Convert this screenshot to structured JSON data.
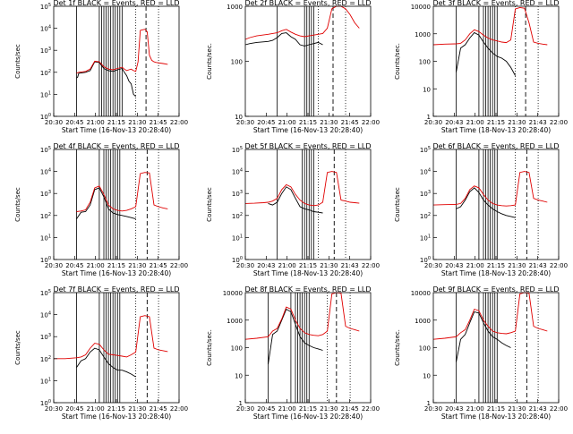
{
  "figure": {
    "x_tick_labels_a": [
      "20:30",
      "20:45",
      "21:00",
      "21:15",
      "21:30",
      "21:45",
      "22:00"
    ],
    "x_tick_labels_b": [
      "20:30",
      "20:43",
      "21:00",
      "21:15",
      "21:30",
      "21:43",
      "22:00"
    ],
    "xlabel_a": "Start Time (16-Nov-13 20:28:40)",
    "xlabel_b": "Start Time (18-Nov-13 20:28:40)",
    "ylabel": "Counts/sec",
    "ylabel_alt": "Counts/sec."
  },
  "chart_data": [
    {
      "type": "line",
      "panel": "det-1f",
      "title": "Det 1f  BLACK = Events, RED = LLD",
      "xlabel_key": "a",
      "ylabel_key": "a",
      "xticks": "a",
      "yscale": "log",
      "ytick_style": "exp",
      "ylim": [
        1,
        100000
      ],
      "x_minutes": [
        0,
        60
      ],
      "series": [
        {
          "name": "BLACK = Events",
          "color": "#000000",
          "x": [
            10,
            10.5,
            11,
            14,
            16,
            18,
            20,
            22,
            24,
            26,
            28,
            30,
            31,
            32,
            33,
            34,
            35,
            36
          ],
          "y": [
            55,
            60,
            90,
            100,
            120,
            300,
            280,
            150,
            120,
            110,
            130,
            150,
            100,
            70,
            40,
            30,
            10,
            8
          ]
        },
        {
          "name": "RED = LLD",
          "color": "#e00000",
          "x": [
            10,
            11,
            14,
            16,
            18,
            20,
            22,
            24,
            26,
            28,
            30,
            31,
            32,
            33,
            34,
            35,
            36,
            37,
            38,
            39,
            40,
            41,
            42,
            43,
            44,
            45,
            48,
            50
          ],
          "y": [
            90,
            100,
            110,
            140,
            320,
            300,
            180,
            140,
            130,
            150,
            170,
            140,
            120,
            130,
            140,
            120,
            110,
            300,
            8000,
            8500,
            9000,
            7000,
            600,
            350,
            300,
            280,
            250,
            230
          ]
        }
      ],
      "solid_vlines": [
        10,
        20,
        21,
        22,
        23,
        24,
        25,
        26,
        27,
        28,
        29,
        30
      ],
      "dashed_vlines": [
        40.5
      ],
      "dotted_vlines": [
        36,
        46
      ]
    },
    {
      "type": "line",
      "panel": "det-2f",
      "title": "Det 2f  BLACK = Events, RED = LLD",
      "xlabel_key": "a",
      "ylabel_key": "b",
      "xticks": "a",
      "yscale": "log",
      "ytick_style": "num",
      "ylim": [
        10,
        1000
      ],
      "series": [
        {
          "name": "BLACK = Events",
          "color": "#000000",
          "x": [
            0,
            2,
            5,
            10,
            12,
            14,
            16,
            18,
            20,
            22,
            24,
            26,
            28,
            30,
            32,
            34
          ],
          "y": [
            200,
            210,
            220,
            230,
            240,
            270,
            320,
            330,
            280,
            250,
            200,
            190,
            200,
            210,
            220,
            200
          ]
        },
        {
          "name": "RED = LLD",
          "color": "#e00000",
          "x": [
            0,
            2,
            5,
            10,
            12,
            14,
            16,
            18,
            20,
            22,
            24,
            26,
            28,
            30,
            32,
            34,
            36,
            38,
            40,
            42,
            44,
            46,
            48,
            50
          ],
          "y": [
            250,
            270,
            290,
            310,
            320,
            330,
            360,
            380,
            340,
            310,
            290,
            280,
            290,
            300,
            310,
            320,
            400,
            900,
            1000,
            1000,
            900,
            700,
            500,
            400
          ]
        }
      ],
      "solid_vlines": [
        14,
        26,
        27,
        28,
        29,
        30
      ],
      "dashed_vlines": [
        38.5
      ],
      "dotted_vlines": [
        32,
        44
      ]
    },
    {
      "type": "line",
      "panel": "det-3f",
      "title": "Det 3f  BLACK = Events, RED = LLD",
      "xlabel_key": "b",
      "ylabel_key": "b",
      "xticks": "b",
      "yscale": "log",
      "ytick_style": "num",
      "ylim": [
        1,
        10000
      ],
      "series": [
        {
          "name": "BLACK = Events",
          "color": "#000000",
          "x": [
            10,
            12,
            14,
            16,
            18,
            20,
            22,
            24,
            26,
            28,
            30,
            32,
            34,
            36
          ],
          "y": [
            40,
            300,
            400,
            700,
            1100,
            900,
            500,
            300,
            200,
            150,
            130,
            100,
            60,
            30
          ]
        },
        {
          "name": "RED = LLD",
          "color": "#e00000",
          "x": [
            0,
            5,
            10,
            12,
            14,
            16,
            18,
            20,
            22,
            24,
            26,
            28,
            30,
            32,
            34,
            36,
            38,
            40,
            42,
            44,
            46,
            48,
            50
          ],
          "y": [
            400,
            420,
            430,
            450,
            600,
            1000,
            1400,
            1200,
            900,
            700,
            600,
            550,
            500,
            480,
            600,
            8000,
            9000,
            8500,
            2500,
            500,
            450,
            420,
            400
          ]
        }
      ],
      "solid_vlines": [
        10,
        20,
        22,
        23,
        24,
        25,
        26,
        27,
        28
      ],
      "dashed_vlines": [
        40.5
      ],
      "dotted_vlines": [
        36,
        46
      ]
    },
    {
      "type": "line",
      "panel": "det-4f",
      "title": "Det 4f  BLACK = Events, RED = LLD",
      "xlabel_key": "a",
      "ylabel_key": "a",
      "xticks": "a",
      "yscale": "log",
      "ytick_style": "exp",
      "ylim": [
        1,
        100000
      ],
      "series": [
        {
          "name": "BLACK = Events",
          "color": "#000000",
          "x": [
            10,
            12,
            14,
            16,
            18,
            20,
            22,
            24,
            26,
            28,
            30,
            32,
            34,
            36
          ],
          "y": [
            70,
            140,
            150,
            300,
            1500,
            1800,
            700,
            200,
            130,
            110,
            100,
            90,
            80,
            70
          ]
        },
        {
          "name": "RED = LLD",
          "color": "#e00000",
          "x": [
            10,
            12,
            14,
            16,
            18,
            20,
            22,
            24,
            26,
            28,
            30,
            32,
            34,
            36,
            38,
            40,
            42,
            44,
            46,
            48,
            50
          ],
          "y": [
            150,
            160,
            180,
            400,
            1800,
            2200,
            900,
            300,
            200,
            170,
            160,
            170,
            200,
            250,
            8000,
            9000,
            8500,
            300,
            250,
            220,
            200
          ]
        }
      ],
      "solid_vlines": [
        10,
        20,
        22,
        23,
        24,
        25,
        26,
        27,
        28,
        29
      ],
      "dashed_vlines": [
        41
      ],
      "dotted_vlines": [
        36,
        46
      ]
    },
    {
      "type": "line",
      "panel": "det-5f",
      "title": "Det 5f  BLACK = Events, RED = LLD",
      "xlabel_key": "b",
      "ylabel_key": "a",
      "xticks": "b",
      "yscale": "log",
      "ytick_style": "exp",
      "ylim": [
        1,
        100000
      ],
      "series": [
        {
          "name": "BLACK = Events",
          "color": "#000000",
          "x": [
            10,
            12,
            14,
            16,
            18,
            20,
            22,
            24,
            26,
            28,
            30,
            32,
            34
          ],
          "y": [
            350,
            300,
            400,
            1000,
            2000,
            1500,
            600,
            250,
            200,
            180,
            150,
            140,
            130
          ]
        },
        {
          "name": "RED = LLD",
          "color": "#e00000",
          "x": [
            0,
            4,
            8,
            10,
            12,
            14,
            16,
            18,
            20,
            22,
            24,
            26,
            28,
            30,
            32,
            34,
            36,
            38,
            40,
            42,
            44,
            46,
            48,
            50
          ],
          "y": [
            350,
            360,
            380,
            400,
            450,
            600,
            1500,
            2500,
            2000,
            900,
            500,
            350,
            300,
            280,
            300,
            400,
            9000,
            10000,
            9000,
            500,
            450,
            400,
            380,
            360
          ]
        }
      ],
      "solid_vlines": [
        14,
        25,
        26,
        27,
        28,
        29,
        30
      ],
      "dashed_vlines": [
        39
      ],
      "dotted_vlines": [
        32,
        44
      ]
    },
    {
      "type": "line",
      "panel": "det-6f",
      "title": "Det 6f  BLACK = Events, RED = LLD",
      "xlabel_key": "b",
      "ylabel_key": "a",
      "xticks": "b",
      "yscale": "log",
      "ytick_style": "exp",
      "ylim": [
        1,
        100000
      ],
      "series": [
        {
          "name": "BLACK = Events",
          "color": "#000000",
          "x": [
            10,
            12,
            14,
            16,
            18,
            20,
            22,
            24,
            26,
            28,
            30,
            32,
            34,
            36
          ],
          "y": [
            200,
            250,
            500,
            1200,
            1800,
            1100,
            500,
            300,
            200,
            150,
            120,
            100,
            90,
            80
          ]
        },
        {
          "name": "RED = LLD",
          "color": "#e00000",
          "x": [
            0,
            5,
            10,
            12,
            14,
            16,
            18,
            20,
            22,
            24,
            26,
            28,
            30,
            32,
            34,
            36,
            38,
            40,
            42,
            44,
            46,
            48,
            50
          ],
          "y": [
            300,
            310,
            320,
            350,
            600,
            1500,
            2200,
            1800,
            900,
            500,
            350,
            300,
            280,
            270,
            280,
            300,
            9000,
            10000,
            9000,
            600,
            500,
            450,
            400
          ]
        }
      ],
      "solid_vlines": [
        10,
        20,
        22,
        23,
        24,
        25,
        26,
        27,
        28
      ],
      "dashed_vlines": [
        41
      ],
      "dotted_vlines": [
        36,
        46
      ]
    },
    {
      "type": "line",
      "panel": "det-7f",
      "title": "Det 7f  BLACK = Events, RED = LLD",
      "xlabel_key": "a",
      "ylabel_key": "a",
      "xticks": "a",
      "yscale": "log",
      "ytick_style": "exp",
      "ylim": [
        1,
        100000
      ],
      "series": [
        {
          "name": "BLACK = Events",
          "color": "#000000",
          "x": [
            10,
            12,
            14,
            16,
            18,
            20,
            22,
            24,
            26,
            28,
            30,
            32,
            34,
            36
          ],
          "y": [
            40,
            80,
            100,
            200,
            300,
            250,
            120,
            60,
            40,
            30,
            30,
            25,
            20,
            15
          ]
        },
        {
          "name": "RED = LLD",
          "color": "#e00000",
          "x": [
            0,
            5,
            10,
            12,
            14,
            16,
            18,
            20,
            22,
            24,
            26,
            28,
            30,
            32,
            34,
            36,
            38,
            40,
            42,
            44,
            46,
            48,
            50
          ],
          "y": [
            100,
            100,
            110,
            120,
            150,
            300,
            500,
            450,
            250,
            160,
            150,
            140,
            130,
            120,
            150,
            200,
            8000,
            9000,
            8000,
            300,
            250,
            230,
            210
          ]
        }
      ],
      "solid_vlines": [
        10,
        20,
        22,
        23,
        24,
        25,
        26,
        27,
        28,
        29
      ],
      "dashed_vlines": [
        41
      ],
      "dotted_vlines": [
        36,
        46
      ]
    },
    {
      "type": "line",
      "panel": "det-8f",
      "title": "Det 8f  BLACK = Events, RED = LLD",
      "xlabel_key": "a",
      "ylabel_key": "b",
      "xticks": "a",
      "yscale": "log",
      "ytick_style": "num",
      "ylim": [
        1,
        10000
      ],
      "series": [
        {
          "name": "BLACK = Events",
          "color": "#000000",
          "x": [
            10,
            12,
            14,
            16,
            18,
            20,
            22,
            24,
            26,
            28,
            30,
            32,
            34
          ],
          "y": [
            25,
            300,
            400,
            1000,
            2500,
            2000,
            700,
            250,
            150,
            120,
            100,
            90,
            80
          ]
        },
        {
          "name": "RED = LLD",
          "color": "#e00000",
          "x": [
            0,
            5,
            10,
            12,
            14,
            16,
            18,
            20,
            22,
            24,
            26,
            28,
            30,
            32,
            34,
            36,
            38,
            40,
            42,
            44,
            46,
            48,
            50
          ],
          "y": [
            200,
            220,
            250,
            400,
            500,
            1100,
            3000,
            2500,
            1000,
            500,
            350,
            300,
            280,
            270,
            300,
            400,
            9000,
            10000,
            9500,
            600,
            500,
            450,
            400
          ]
        }
      ],
      "solid_vlines": [
        10,
        20,
        22,
        23,
        24,
        25,
        26,
        27,
        28
      ],
      "dashed_vlines": [
        40
      ],
      "dotted_vlines": [
        36,
        46
      ]
    },
    {
      "type": "line",
      "panel": "det-9f",
      "title": "Det 9f  BLACK = Events, RED = LLD",
      "xlabel_key": "b",
      "ylabel_key": "b",
      "xticks": "b",
      "yscale": "log",
      "ytick_style": "num",
      "ylim": [
        1,
        10000
      ],
      "series": [
        {
          "name": "BLACK = Events",
          "color": "#000000",
          "x": [
            10,
            12,
            14,
            16,
            18,
            20,
            22,
            24,
            26,
            28,
            30,
            32,
            34
          ],
          "y": [
            30,
            200,
            300,
            800,
            2000,
            1800,
            800,
            400,
            250,
            200,
            150,
            120,
            100
          ]
        },
        {
          "name": "RED = LLD",
          "color": "#e00000",
          "x": [
            0,
            5,
            10,
            12,
            14,
            16,
            18,
            20,
            22,
            24,
            26,
            28,
            30,
            32,
            34,
            36,
            38,
            40,
            42,
            44,
            46,
            48,
            50
          ],
          "y": [
            200,
            220,
            250,
            350,
            450,
            1000,
            2500,
            2200,
            1000,
            600,
            400,
            350,
            330,
            320,
            350,
            400,
            9000,
            10000,
            9500,
            600,
            500,
            450,
            400
          ]
        }
      ],
      "solid_vlines": [
        10,
        20,
        22,
        23,
        24,
        25,
        26,
        27,
        28
      ],
      "dashed_vlines": [
        41
      ],
      "dotted_vlines": [
        36,
        46
      ]
    }
  ]
}
